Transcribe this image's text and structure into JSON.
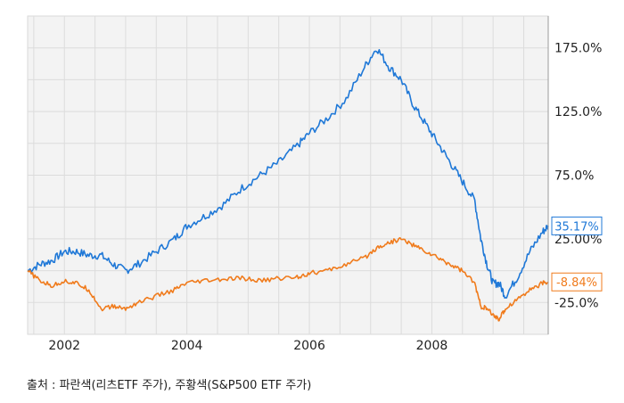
{
  "chart_data": {
    "type": "line",
    "title": "",
    "xlabel": "",
    "ylabel": "",
    "x_ticks": [
      "2002",
      "2004",
      "2006",
      "2008"
    ],
    "x_range": [
      2001.4,
      2009.9
    ],
    "y_ticks": [
      "175.0%",
      "125.0%",
      "75.0%",
      "25.00%",
      "-25.0%"
    ],
    "y_tick_values": [
      175,
      125,
      75,
      25,
      -25
    ],
    "ylim": [
      -50,
      200
    ],
    "grid": true,
    "series": [
      {
        "color": "#1f78d7",
        "end_label": "35.17%",
        "x": [
          2001.4,
          2001.6,
          2001.8,
          2002.0,
          2002.2,
          2002.4,
          2002.6,
          2002.8,
          2003.0,
          2003.2,
          2003.5,
          2003.8,
          2004.0,
          2004.3,
          2004.6,
          2004.9,
          2005.2,
          2005.5,
          2005.8,
          2006.0,
          2006.3,
          2006.6,
          2006.9,
          2007.1,
          2007.3,
          2007.5,
          2007.7,
          2007.9,
          2008.1,
          2008.3,
          2008.5,
          2008.7,
          2008.8,
          2008.9,
          2009.0,
          2009.1,
          2009.2,
          2009.4,
          2009.6,
          2009.8,
          2009.9
        ],
        "y": [
          0,
          5,
          8,
          15,
          15,
          12,
          12,
          5,
          0,
          5,
          15,
          25,
          35,
          43,
          52,
          65,
          75,
          85,
          98,
          108,
          120,
          135,
          160,
          175,
          160,
          150,
          130,
          115,
          100,
          85,
          70,
          55,
          25,
          5,
          -10,
          -10,
          -20,
          -5,
          15,
          30,
          35.17
        ]
      },
      {
        "color": "#f07b1c",
        "end_label": "-8.84%",
        "x": [
          2001.4,
          2001.6,
          2001.8,
          2002.0,
          2002.2,
          2002.4,
          2002.6,
          2002.8,
          2003.0,
          2003.2,
          2003.5,
          2003.8,
          2004.0,
          2004.3,
          2004.6,
          2004.9,
          2005.2,
          2005.5,
          2005.8,
          2006.0,
          2006.3,
          2006.6,
          2006.9,
          2007.1,
          2007.3,
          2007.5,
          2007.7,
          2007.9,
          2008.1,
          2008.3,
          2008.5,
          2008.7,
          2008.8,
          2008.9,
          2009.0,
          2009.1,
          2009.2,
          2009.4,
          2009.6,
          2009.8,
          2009.9
        ],
        "y": [
          0,
          -8,
          -12,
          -8,
          -10,
          -15,
          -30,
          -28,
          -30,
          -25,
          -20,
          -15,
          -10,
          -8,
          -7,
          -6,
          -8,
          -6,
          -5,
          -2,
          0,
          5,
          10,
          18,
          22,
          25,
          20,
          15,
          10,
          5,
          0,
          -10,
          -28,
          -30,
          -35,
          -38,
          -30,
          -22,
          -15,
          -10,
          -8.84
        ]
      }
    ]
  },
  "source_note": "출처 : 파란색(리츠ETF 주가), 주황색(S&P500 ETF 주가)"
}
